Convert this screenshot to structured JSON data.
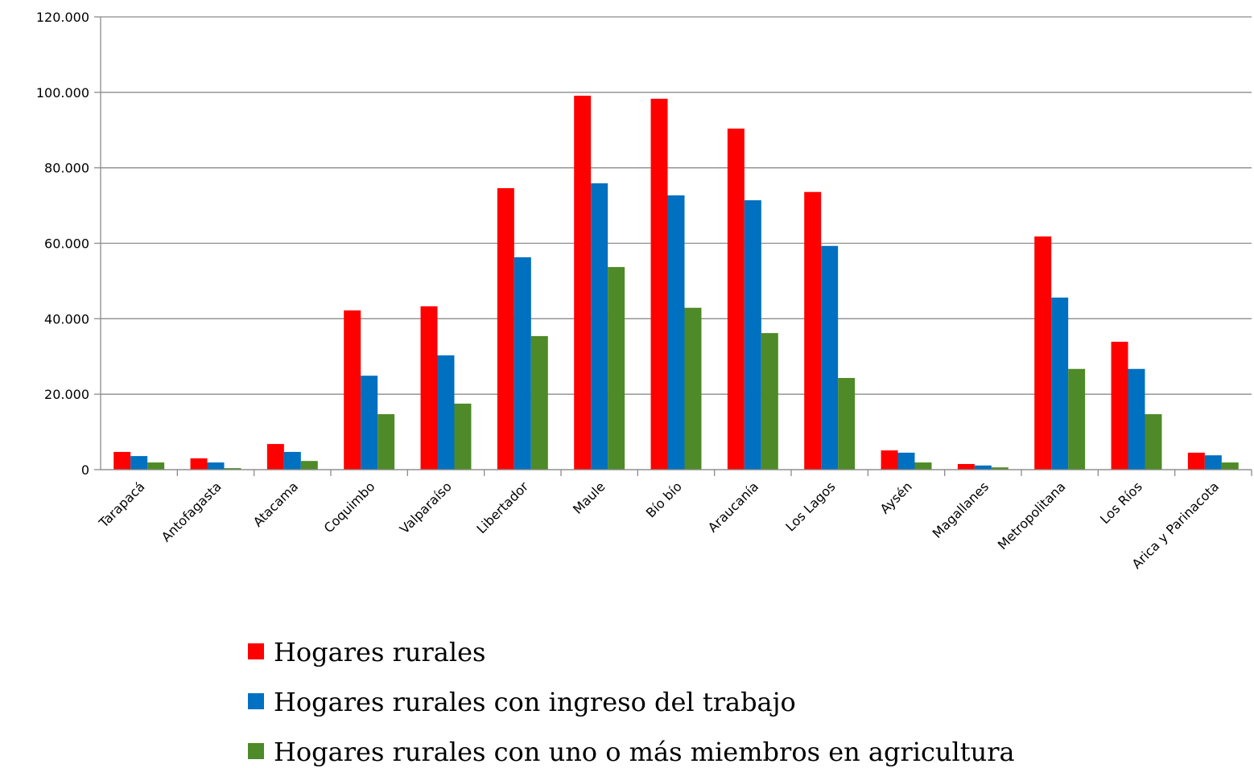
{
  "chart_data": {
    "type": "bar",
    "categories": [
      "Tarapacá",
      "Antofagasta",
      "Atacama",
      "Coquimbo",
      "Valparaíso",
      "Libertador",
      "Maule",
      "Bío bío",
      "Araucanía",
      "Los Lagos",
      "Aysén",
      "Magallanes",
      "Metropolitana",
      "Los Ríos",
      "Arica y Parinacota"
    ],
    "series": [
      {
        "name": "Hogares rurales",
        "color": "#ff0000",
        "values": [
          4700,
          3000,
          6800,
          42200,
          43300,
          74600,
          99100,
          98300,
          90400,
          73600,
          5100,
          1500,
          61800,
          33900,
          4500
        ]
      },
      {
        "name": "Hogares rurales con ingreso del trabajo",
        "color": "#0070c0",
        "values": [
          3600,
          1900,
          4700,
          24900,
          30300,
          56300,
          75900,
          72700,
          71400,
          59300,
          4500,
          1100,
          45600,
          26700,
          3800
        ]
      },
      {
        "name": "Hogares rurales con uno o más miembros en agricultura",
        "color": "#4e8a27",
        "values": [
          1900,
          400,
          2300,
          14700,
          17500,
          35400,
          53700,
          42900,
          36200,
          24300,
          1900,
          600,
          26700,
          14700,
          1900
        ]
      }
    ],
    "ylim": [
      0,
      120000
    ],
    "yticks": [
      0,
      {
        "value": 20000,
        "label": "20.000"
      },
      {
        "value": 40000,
        "label": "40.000"
      },
      {
        "value": 60000,
        "label": "60.000"
      },
      {
        "value": 80000,
        "label": "80.000"
      },
      {
        "value": 100000,
        "label": "100.000"
      },
      {
        "value": 120000,
        "label": "120.000"
      }
    ],
    "grid": true
  }
}
